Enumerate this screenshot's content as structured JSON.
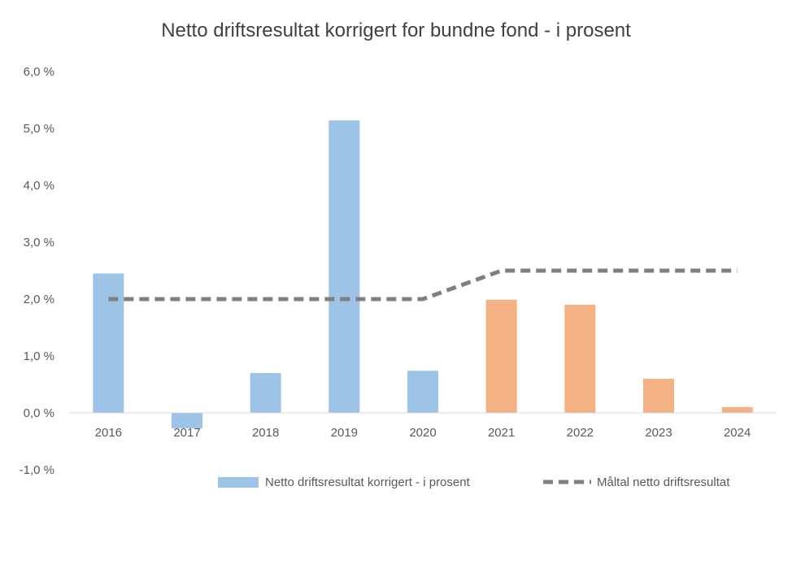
{
  "chart_data": {
    "type": "bar",
    "title": "Netto driftsresultat korrigert for bundne fond -  i prosent",
    "xlabel": "",
    "ylabel": "",
    "categories": [
      "2016",
      "2017",
      "2018",
      "2019",
      "2020",
      "2021",
      "2022",
      "2023",
      "2024"
    ],
    "ylim": [
      -1.0,
      6.0
    ],
    "y_ticks": [
      6.0,
      5.0,
      4.0,
      3.0,
      2.0,
      1.0,
      0.0,
      -1.0
    ],
    "y_tick_labels": [
      "6,0 %",
      "5,0 %",
      "4,0 %",
      "3,0 %",
      "2,0 %",
      "1,0 %",
      "0,0 %",
      "-1,0 %"
    ],
    "grid": false,
    "legend_position": "bottom-right",
    "series": [
      {
        "name": "Netto driftsresultat korrigert - i prosent",
        "type": "bar",
        "values": [
          2.45,
          -0.27,
          0.7,
          5.14,
          0.74,
          1.99,
          1.9,
          0.6,
          0.1
        ],
        "colors": [
          "#9dc3e6",
          "#9dc3e6",
          "#9dc3e6",
          "#9dc3e6",
          "#9dc3e6",
          "#f4b183",
          "#f4b183",
          "#f4b183",
          "#f4b183"
        ],
        "legend_color": "#9dc3e6"
      },
      {
        "name": "Måltal netto driftsresultat",
        "type": "line",
        "style": "dashed",
        "color": "#7f7f7f",
        "values": [
          2.0,
          2.0,
          2.0,
          2.0,
          2.0,
          2.5,
          2.5,
          2.5,
          2.5
        ]
      }
    ]
  }
}
